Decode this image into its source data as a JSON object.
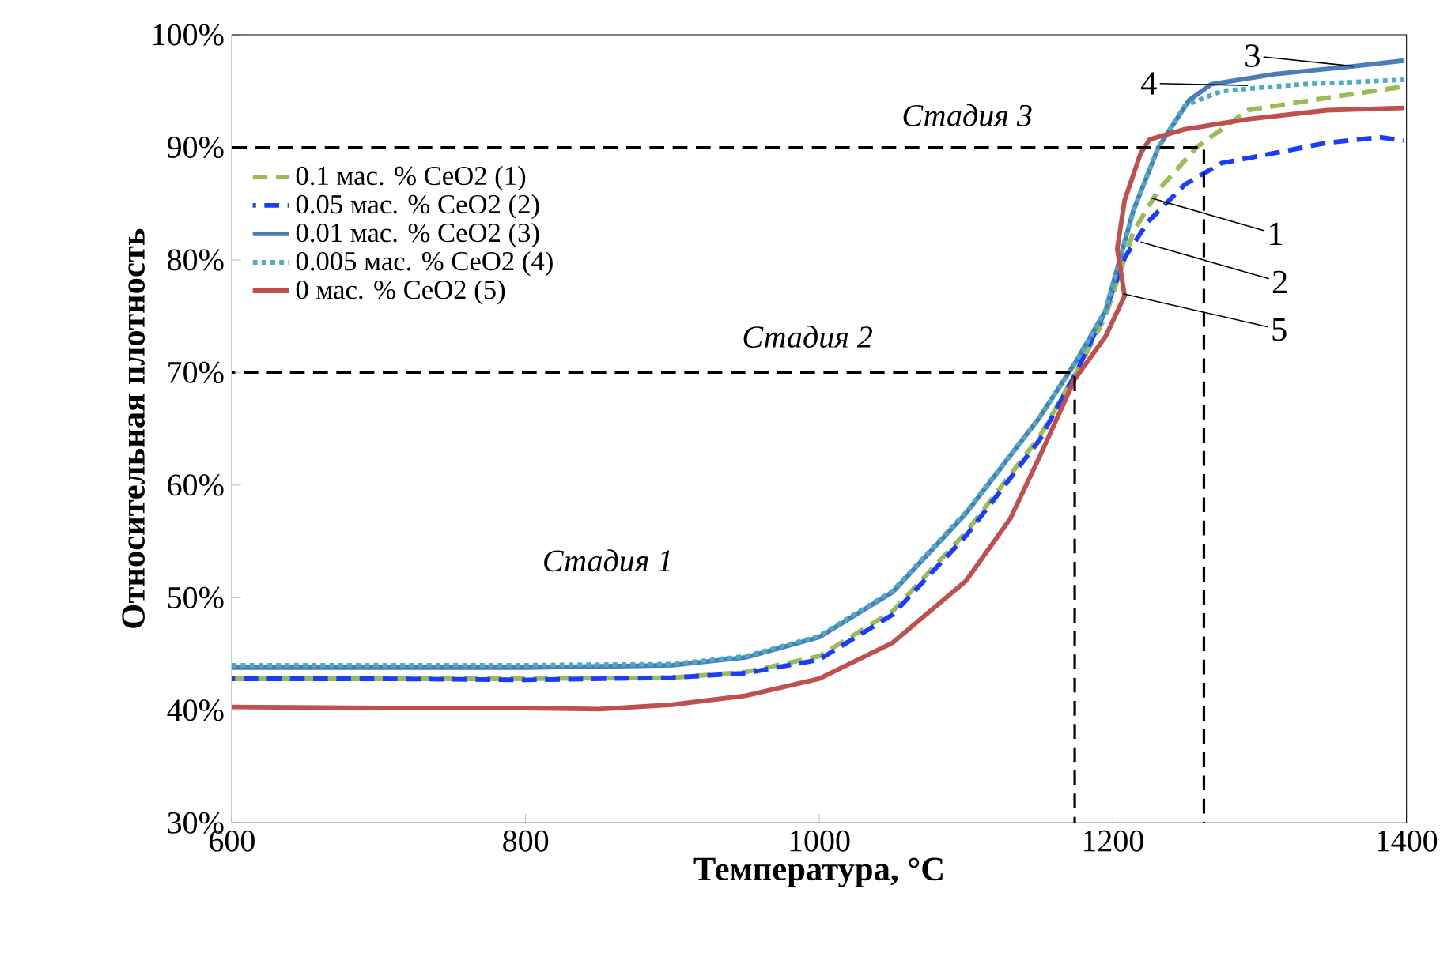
{
  "chart_data": {
    "type": "line",
    "xlabel": "Температура, °C",
    "ylabel": "Относительная плотность",
    "xlim": [
      600,
      1400
    ],
    "xticks": [
      600,
      800,
      1000,
      1200,
      1400
    ],
    "ylim": [
      30,
      100
    ],
    "yticks": [
      {
        "value": 30,
        "label": "30%"
      },
      {
        "value": 40,
        "label": "40%"
      },
      {
        "value": 50,
        "label": "50%"
      },
      {
        "value": 60,
        "label": "60%"
      },
      {
        "value": 70,
        "label": "70%"
      },
      {
        "value": 80,
        "label": "80%"
      },
      {
        "value": 90,
        "label": "90%"
      },
      {
        "value": 100,
        "label": "100%"
      }
    ],
    "grid": false,
    "legend": "top left",
    "marker": "none",
    "series": [
      {
        "name": "0.1 мас. % CeO2 (1)",
        "color": "#9bbb59",
        "line_style": "dashed",
        "x": [
          600,
          700,
          800,
          900,
          950,
          1000,
          1050,
          1100,
          1150,
          1175,
          1195,
          1214,
          1231,
          1257,
          1292,
          1346,
          1398
        ],
        "values": [
          42.8,
          42.8,
          42.8,
          42.9,
          43.4,
          44.8,
          48.8,
          55.8,
          64.3,
          70,
          75,
          82.5,
          86.2,
          90,
          93.3,
          94.4,
          95.4
        ]
      },
      {
        "name": "0.05 мас. % CeO2 (2)",
        "color": "#1a3cff",
        "line_style": "dashed",
        "x": [
          600,
          700,
          800,
          900,
          950,
          1000,
          1050,
          1100,
          1150,
          1175,
          1195,
          1208,
          1224,
          1249,
          1274,
          1310,
          1346,
          1382,
          1398
        ],
        "values": [
          42.8,
          42.8,
          42.7,
          42.9,
          43.3,
          44.5,
          48.5,
          55.5,
          64,
          70,
          75.5,
          80.2,
          83.4,
          86.7,
          88.6,
          89.5,
          90.4,
          90.9,
          90.6
        ]
      },
      {
        "name": "0.01 мас. % CeO2 (3)",
        "color": "#4a7ebb",
        "line_style": "solid",
        "x": [
          600,
          700,
          800,
          900,
          950,
          1000,
          1050,
          1100,
          1150,
          1175,
          1195,
          1214,
          1231,
          1252,
          1267,
          1310,
          1364,
          1398
        ],
        "values": [
          43.8,
          43.8,
          43.8,
          44,
          44.7,
          46.5,
          50.5,
          57.5,
          66,
          71,
          75.5,
          84.4,
          90,
          94.2,
          95.6,
          96.5,
          97.2,
          97.7
        ]
      },
      {
        "name": "0.005 мас. % CeO2 (4)",
        "color": "#4bacc6",
        "line_style": "dotted",
        "x": [
          600,
          700,
          800,
          900,
          950,
          1000,
          1050,
          1100,
          1150,
          1175,
          1195,
          1214,
          1231,
          1249,
          1274,
          1328,
          1398
        ],
        "values": [
          44,
          44,
          44,
          44.1,
          44.8,
          46.6,
          50.6,
          57.6,
          66,
          71,
          75.5,
          84.4,
          90,
          93.7,
          95,
          95.6,
          96
        ]
      },
      {
        "name": "0 мас. % CeO2 (5)",
        "color": "#c0504d",
        "line_style": "solid",
        "x": [
          600,
          700,
          800,
          850,
          900,
          950,
          1000,
          1050,
          1100,
          1130,
          1150,
          1174,
          1195,
          1208,
          1203,
          1208,
          1219,
          1225,
          1249,
          1292,
          1346,
          1398
        ],
        "values": [
          40.3,
          40.2,
          40.2,
          40.1,
          40.5,
          41.3,
          42.8,
          46,
          51.5,
          57,
          62.5,
          69.4,
          73.2,
          76.8,
          81,
          85.3,
          89.5,
          90.7,
          91.6,
          92.5,
          93.3,
          93.5
        ]
      },
      {
        "color": "#000000",
        "line_style": "dashed",
        "x": [
          600,
          1174,
          1174
        ],
        "values": [
          70,
          70,
          30
        ]
      },
      {
        "color": "#000000",
        "line_style": "dashed",
        "x": [
          600,
          1262,
          1262
        ],
        "values": [
          90,
          90,
          30
        ]
      }
    ],
    "annotations": [
      "Стадия 1",
      "Стадия 2",
      "Стадия 3",
      {
        "text": "3",
        "x": 1364,
        "y": 97.2
      },
      {
        "text": "4",
        "x": 1292,
        "y": 95.5
      },
      {
        "text": "1",
        "x": 1226,
        "y": 85.5
      },
      {
        "text": "2",
        "x": 1219,
        "y": 81.6
      },
      {
        "text": "5",
        "x": 1207,
        "y": 77
      }
    ]
  }
}
